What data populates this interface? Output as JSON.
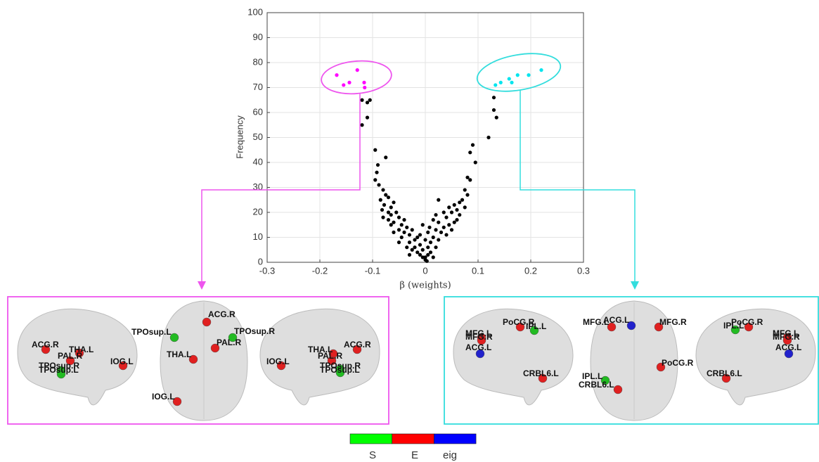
{
  "chart_data": {
    "type": "scatter",
    "xlabel": "β (weights)",
    "ylabel": "Frequency",
    "xlim": [
      -0.3,
      0.3
    ],
    "ylim": [
      0,
      100
    ],
    "xticks": [
      -0.3,
      -0.2,
      -0.1,
      0,
      0.1,
      0.2,
      0.3
    ],
    "yticks": [
      0,
      10,
      20,
      30,
      40,
      50,
      60,
      70,
      80,
      90,
      100
    ],
    "grid": true,
    "series": [
      {
        "color": "#000000",
        "x": [
          -0.12,
          -0.11,
          -0.105,
          -0.11,
          -0.12,
          -0.095,
          -0.075,
          -0.09,
          -0.092,
          -0.095,
          -0.088,
          -0.08,
          -0.075,
          -0.085,
          -0.07,
          -0.078,
          -0.082,
          -0.065,
          -0.06,
          -0.07,
          -0.055,
          -0.05,
          -0.06,
          -0.045,
          -0.04,
          -0.05,
          -0.035,
          -0.04,
          -0.03,
          -0.045,
          -0.025,
          -0.02,
          -0.03,
          -0.015,
          -0.02,
          -0.025,
          -0.01,
          -0.015,
          -0.005,
          -0.01,
          -0.005,
          0,
          -0.03,
          -0.035,
          -0.05,
          -0.06,
          -0.065,
          -0.07,
          -0.08,
          -0.065,
          0.13,
          0.13,
          0.135,
          0.12,
          0.09,
          0.095,
          0.085,
          0.08,
          0.085,
          0.075,
          0.08,
          0.07,
          0.065,
          0.075,
          0.06,
          0.055,
          0.065,
          0.05,
          0.04,
          0.045,
          0.055,
          0.035,
          0.025,
          0.03,
          0.02,
          0.015,
          0.025,
          0.01,
          0.02,
          0.005,
          0.01,
          0.005,
          0,
          0.003,
          0.015,
          0.04,
          0.05,
          0.06,
          0.045,
          0.035,
          0.025,
          0.015,
          0.005,
          -0.005,
          0,
          -0.01,
          0.008,
          0.02
        ],
        "values": [
          65,
          64,
          65,
          58,
          55,
          45,
          42,
          39,
          36,
          33,
          31,
          29,
          27,
          25,
          26,
          23,
          21,
          22,
          24,
          20,
          20,
          18,
          16,
          15,
          17,
          13,
          14,
          12,
          11,
          10,
          13,
          9,
          8,
          10,
          6,
          5,
          7,
          4,
          5,
          3,
          2,
          1,
          3,
          6,
          8,
          12,
          15,
          17,
          18,
          19,
          66,
          61,
          58,
          50,
          47,
          40,
          44,
          34,
          33,
          29,
          27,
          25,
          24,
          22,
          21,
          23,
          19,
          20,
          18,
          15,
          16,
          14,
          16,
          12,
          13,
          10,
          9,
          8,
          6,
          6,
          4,
          3,
          2,
          0.5,
          2,
          11,
          13,
          17,
          22,
          20,
          25,
          17,
          12,
          15,
          9,
          11,
          14,
          19
        ]
      },
      {
        "color": "#ff00ff",
        "x": [
          -0.168,
          -0.155,
          -0.144,
          -0.129,
          -0.116,
          -0.115
        ],
        "values": [
          75,
          71,
          72,
          77,
          72,
          70
        ]
      },
      {
        "color": "#00e5ee",
        "x": [
          0.133,
          0.143,
          0.159,
          0.164,
          0.175,
          0.196,
          0.22
        ],
        "values": [
          71,
          72,
          73.5,
          72,
          75,
          75,
          77
        ]
      }
    ]
  },
  "panels": [
    {
      "nodes": [
        {
          "label": "ACG.R",
          "color": "#e02020"
        },
        {
          "label": "THA.L",
          "color": "#e02020"
        },
        {
          "label": "PAL.R",
          "color": "#e02020"
        },
        {
          "label": "TPOsup.R",
          "color": "#22bb22"
        },
        {
          "label": "TPOsup.L",
          "color": "#22bb22"
        },
        {
          "label": "IOG.L",
          "color": "#e02020"
        },
        {
          "label": "ACG.R",
          "color": "#e02020"
        },
        {
          "label": "TPOsup.L",
          "color": "#22bb22"
        },
        {
          "label": "TPOsup.R",
          "color": "#22bb22"
        },
        {
          "label": "PAL.R",
          "color": "#e02020"
        },
        {
          "label": "THA.L",
          "color": "#e02020"
        },
        {
          "label": "IOG.L",
          "color": "#e02020"
        },
        {
          "label": "ACG.R",
          "color": "#e02020"
        },
        {
          "label": "THA.L",
          "color": "#e02020"
        },
        {
          "label": "PAL.R",
          "color": "#e02020"
        },
        {
          "label": "TPOsup.R",
          "color": "#22bb22"
        },
        {
          "label": "TPOsup.L",
          "color": "#22bb22"
        },
        {
          "label": "IOG.L",
          "color": "#e02020"
        }
      ]
    },
    {
      "nodes": [
        {
          "label": "MFG.L",
          "color": "#e02020"
        },
        {
          "label": "MFG.R",
          "color": "#e02020"
        },
        {
          "label": "ACG.L",
          "color": "#2222cc"
        },
        {
          "label": "PoCG.R",
          "color": "#e02020"
        },
        {
          "label": "IPL.L",
          "color": "#22bb22"
        },
        {
          "label": "CRBL6.L",
          "color": "#e02020"
        },
        {
          "label": "MFG.L",
          "color": "#e02020"
        },
        {
          "label": "ACG.L",
          "color": "#2222cc"
        },
        {
          "label": "MFG.R",
          "color": "#e02020"
        },
        {
          "label": "PoCG.R",
          "color": "#e02020"
        },
        {
          "label": "IPL.L",
          "color": "#22bb22"
        },
        {
          "label": "CRBL6.L",
          "color": "#e02020"
        },
        {
          "label": "IPL.L",
          "color": "#22bb22"
        },
        {
          "label": "PoCG.R",
          "color": "#e02020"
        },
        {
          "label": "MFG.L",
          "color": "#e02020"
        },
        {
          "label": "MFG.R",
          "color": "#e02020"
        },
        {
          "label": "ACG.L",
          "color": "#2222cc"
        },
        {
          "label": "CRBL6.L",
          "color": "#e02020"
        }
      ]
    }
  ],
  "colorbar": {
    "labels": [
      "S",
      "E",
      "eig"
    ],
    "colors": [
      "#00ff00",
      "#ff0000",
      "#0000ff"
    ]
  }
}
